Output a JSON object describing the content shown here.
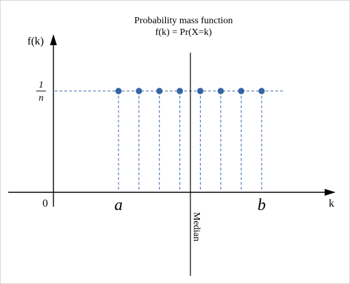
{
  "title": "Probability mass function",
  "subtitle": "f(k) = Pr(X=k)",
  "y_axis_label": "f(k)",
  "x_axis_label": "k",
  "origin_label": "0",
  "level_numerator": "1",
  "level_denominator": "n",
  "a_label": "a",
  "b_label": "b",
  "median_label": "Median",
  "point_color": "#3465a4",
  "dash_color": "#3465a4",
  "pmf": {
    "point_count": 8,
    "value_label": "1/n"
  }
}
